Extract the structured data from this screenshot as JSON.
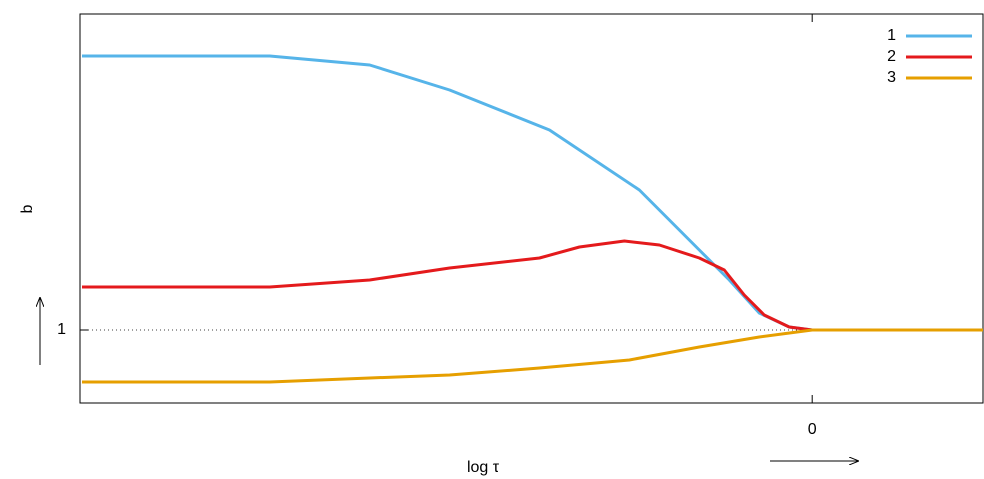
{
  "chart_data": {
    "type": "line",
    "xlabel": "log τ",
    "ylabel": "b",
    "xlim": [
      -7.33,
      1.71
    ],
    "ylim": [
      0.27,
      4.16
    ],
    "xticks": [
      0
    ],
    "yticks": [
      1
    ],
    "grid": true,
    "legend": "top-right",
    "series": [
      {
        "name": "1",
        "color": "#56b4e9",
        "x": [
          -7.31,
          -5.43,
          -4.43,
          -3.63,
          -2.63,
          -1.73,
          -1.13,
          -0.83,
          -0.53,
          -0.23,
          0,
          1.71
        ],
        "values": [
          3.74,
          3.74,
          3.65,
          3.4,
          3.0,
          2.4,
          1.8,
          1.5,
          1.17,
          1.03,
          1,
          1
        ]
      },
      {
        "name": "2",
        "color": "#e41a1c",
        "x": [
          -7.31,
          -5.43,
          -4.43,
          -3.63,
          -2.73,
          -2.33,
          -1.88,
          -1.53,
          -1.13,
          -0.88,
          -0.68,
          -0.48,
          -0.23,
          0,
          1.71
        ],
        "values": [
          1.43,
          1.43,
          1.5,
          1.62,
          1.72,
          1.83,
          1.89,
          1.85,
          1.72,
          1.6,
          1.35,
          1.15,
          1.03,
          1,
          1
        ]
      },
      {
        "name": "3",
        "color": "#e69f00",
        "x": [
          -7.31,
          -5.43,
          -4.43,
          -3.63,
          -2.73,
          -1.83,
          -1.13,
          -0.53,
          0,
          1.71
        ],
        "values": [
          0.48,
          0.48,
          0.52,
          0.55,
          0.62,
          0.7,
          0.83,
          0.93,
          1,
          1
        ]
      }
    ]
  }
}
